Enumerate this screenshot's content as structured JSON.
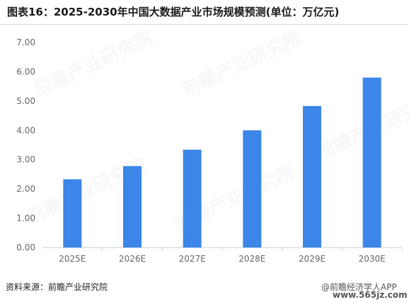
{
  "title": "图表16：2025-2030年中国大数据产业市场规模预测(单位：万亿元)",
  "source": "资料来源：前瞻产业研究院",
  "watermark": "@前瞻经济学人APP",
  "site_mark": "www.565jz.com",
  "background_watermark": "前瞻产业研究院",
  "colors": {
    "bar": "#3b86e8",
    "axis": "#cccccc",
    "tick_text": "#666666"
  },
  "chart_data": {
    "type": "bar",
    "title": "图表16：2025-2030年中国大数据产业市场规模预测(单位：万亿元)",
    "categories": [
      "2025E",
      "2026E",
      "2027E",
      "2028E",
      "2029E",
      "2030E"
    ],
    "values": [
      2.33,
      2.78,
      3.34,
      4.0,
      4.83,
      5.8
    ],
    "ylim": [
      0,
      7
    ],
    "yticks": [
      "0.00",
      "1.00",
      "2.00",
      "3.00",
      "4.00",
      "5.00",
      "6.00",
      "7.00"
    ],
    "grid": false,
    "xlabel": "",
    "ylabel": ""
  }
}
